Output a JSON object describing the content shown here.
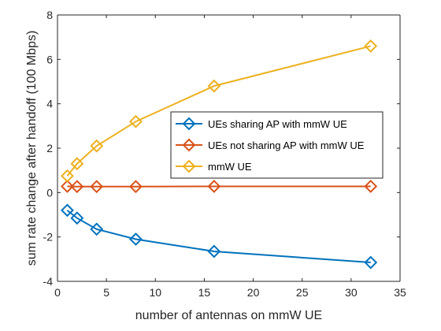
{
  "chart_data": {
    "type": "line",
    "title": "",
    "xlabel": "number of antennas on mmW UE",
    "ylabel": "sum rate change after handoff (100 Mbps)",
    "xlim": [
      0,
      35
    ],
    "ylim": [
      -4,
      8
    ],
    "xticks": [
      0,
      5,
      10,
      15,
      20,
      25,
      30,
      35
    ],
    "yticks": [
      -4,
      -2,
      0,
      2,
      4,
      6,
      8
    ],
    "grid": false,
    "legend_position": "center-right",
    "x": [
      1,
      2,
      4,
      8,
      16,
      32
    ],
    "series": [
      {
        "name": "UEs sharing AP with mmW UE",
        "color": "#0072BD",
        "marker": "diamond",
        "values": [
          -0.8,
          -1.15,
          -1.65,
          -2.1,
          -2.65,
          -3.15
        ]
      },
      {
        "name": "UEs not sharing AP with mmW UE",
        "color": "#D95319",
        "marker": "diamond",
        "values": [
          0.28,
          0.27,
          0.27,
          0.27,
          0.28,
          0.28
        ]
      },
      {
        "name": "mmW UE",
        "color": "#EDB120",
        "marker": "diamond",
        "values": [
          0.75,
          1.3,
          2.1,
          3.2,
          4.8,
          6.6
        ]
      }
    ]
  }
}
